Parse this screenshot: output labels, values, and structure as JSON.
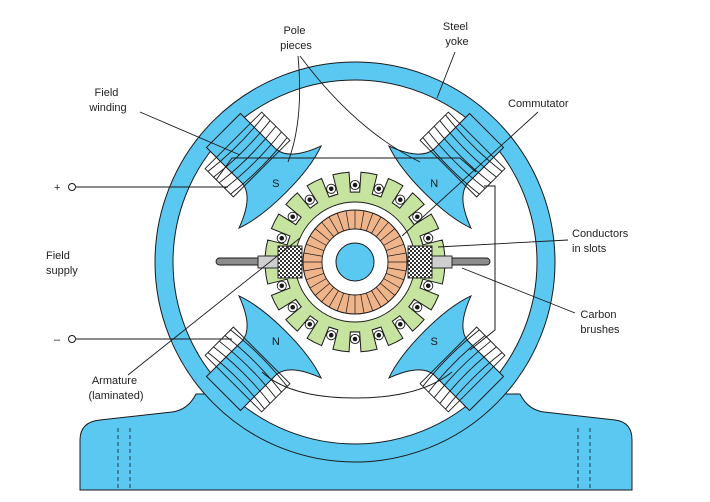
{
  "labels": {
    "pole_pieces": [
      "Pole",
      "pieces"
    ],
    "steel_yoke": [
      "Steel",
      "yoke"
    ],
    "field_winding": [
      "Field",
      "winding"
    ],
    "commutator": [
      "Commutator"
    ],
    "conductors": [
      "Conductors",
      "in slots"
    ],
    "field_supply": [
      "Field",
      "supply"
    ],
    "carbon_brushes": [
      "Carbon",
      "brushes"
    ],
    "armature": [
      "Armature",
      "(laminated)"
    ],
    "plus": "+",
    "minus": "–"
  },
  "poles": {
    "upper_left": "S",
    "upper_right": "N",
    "lower_left": "N",
    "lower_right": "S"
  },
  "colors": {
    "steel": "#5bc8f2",
    "armature": "#c6e3a0",
    "commutator": "#f0b48a",
    "line": "#1a1a1a"
  },
  "counts": {
    "armature_teeth": 20,
    "commutator_segments": 36
  }
}
